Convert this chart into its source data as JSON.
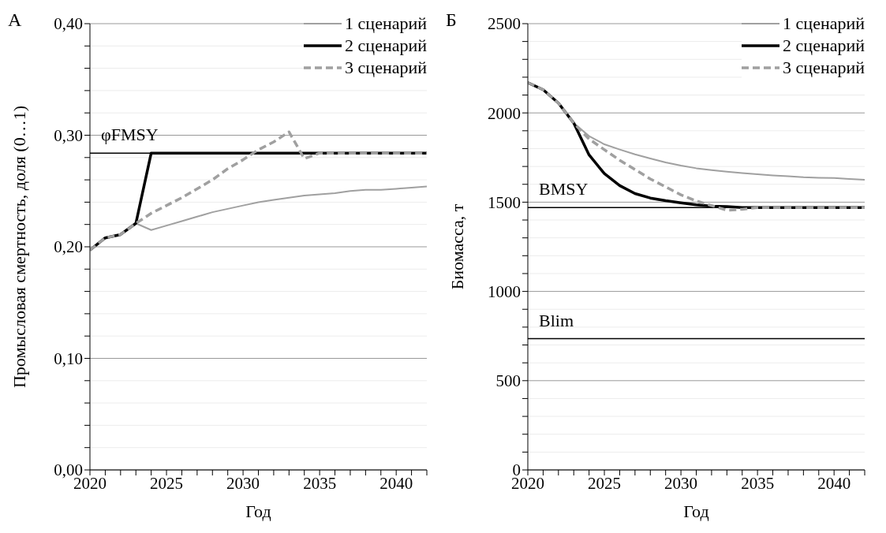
{
  "chart_data": [
    {
      "type": "line",
      "title": "А",
      "xlabel": "Год",
      "ylabel": "Промысловая смертность, доля (0…1)",
      "x": [
        2020,
        2021,
        2022,
        2023,
        2024,
        2025,
        2026,
        2027,
        2028,
        2029,
        2030,
        2031,
        2032,
        2033,
        2034,
        2035,
        2036,
        2037,
        2038,
        2039,
        2040,
        2041,
        2042
      ],
      "series": [
        {
          "name": "1 сценарий",
          "color": "#a0a0a0",
          "line_style": "solid",
          "values": [
            0.197,
            0.208,
            0.211,
            0.221,
            0.215,
            0.219,
            0.223,
            0.227,
            0.231,
            0.234,
            0.237,
            0.24,
            0.242,
            0.244,
            0.246,
            0.247,
            0.248,
            0.25,
            0.251,
            0.251,
            0.252,
            0.253,
            0.254
          ]
        },
        {
          "name": "2 сценарий",
          "color": "#000000",
          "line_style": "solid",
          "values": [
            0.197,
            0.208,
            0.211,
            0.221,
            0.284,
            0.284,
            0.284,
            0.284,
            0.284,
            0.284,
            0.284,
            0.284,
            0.284,
            0.284,
            0.284,
            0.284,
            0.284,
            0.284,
            0.284,
            0.284,
            0.284,
            0.284,
            0.284
          ]
        },
        {
          "name": "3 сценарий",
          "color": "#a0a0a0",
          "line_style": "dashed",
          "values": [
            0.197,
            0.208,
            0.211,
            0.221,
            0.23,
            0.237,
            0.244,
            0.252,
            0.26,
            0.27,
            0.278,
            0.287,
            0.294,
            0.303,
            0.279,
            0.284,
            0.284,
            0.284,
            0.284,
            0.284,
            0.284,
            0.284,
            0.284
          ]
        }
      ],
      "xlim": [
        2020,
        2042
      ],
      "xticks": [
        2020,
        {
          "value": 2021,
          "label": null
        },
        {
          "value": 2022,
          "label": null
        },
        {
          "value": 2023,
          "label": null
        },
        {
          "value": 2024,
          "label": null
        },
        2025,
        {
          "value": 2026,
          "label": null
        },
        {
          "value": 2027,
          "label": null
        },
        {
          "value": 2028,
          "label": null
        },
        {
          "value": 2029,
          "label": null
        },
        2030,
        {
          "value": 2031,
          "label": null
        },
        {
          "value": 2032,
          "label": null
        },
        {
          "value": 2033,
          "label": null
        },
        {
          "value": 2034,
          "label": null
        },
        2035,
        {
          "value": 2036,
          "label": null
        },
        {
          "value": 2037,
          "label": null
        },
        {
          "value": 2038,
          "label": null
        },
        {
          "value": 2039,
          "label": null
        },
        2040,
        {
          "value": 2041,
          "label": null
        },
        {
          "value": 2042,
          "label": null
        }
      ],
      "ylim": [
        0,
        0.4
      ],
      "yticks": [
        {
          "value": 0,
          "label": "0,00"
        },
        {
          "value": 0.02,
          "label": null
        },
        {
          "value": 0.04,
          "label": null
        },
        {
          "value": 0.06,
          "label": null
        },
        {
          "value": 0.08,
          "label": null
        },
        {
          "value": 0.1,
          "label": "0,10"
        },
        {
          "value": 0.12,
          "label": null
        },
        {
          "value": 0.14,
          "label": null
        },
        {
          "value": 0.16,
          "label": null
        },
        {
          "value": 0.18,
          "label": null
        },
        {
          "value": 0.2,
          "label": "0,20"
        },
        {
          "value": 0.22,
          "label": null
        },
        {
          "value": 0.24,
          "label": null
        },
        {
          "value": 0.26,
          "label": null
        },
        {
          "value": 0.28,
          "label": null
        },
        {
          "value": 0.3,
          "label": "0,30"
        },
        {
          "value": 0.32,
          "label": null
        },
        {
          "value": 0.34,
          "label": null
        },
        {
          "value": 0.36,
          "label": null
        },
        {
          "value": 0.38,
          "label": null
        },
        {
          "value": 0.4,
          "label": "0,40"
        }
      ],
      "grid": "y",
      "legend": "top right",
      "ref_lines": [
        {
          "axis": "y",
          "value": 0.284,
          "label": "φFMSY",
          "color": "#000000"
        }
      ]
    },
    {
      "type": "line",
      "title": "Б",
      "xlabel": "Год",
      "ylabel": "Биомасса, т",
      "x": [
        2020,
        2021,
        2022,
        2023,
        2024,
        2025,
        2026,
        2027,
        2028,
        2029,
        2030,
        2031,
        2032,
        2033,
        2034,
        2035,
        2036,
        2037,
        2038,
        2039,
        2040,
        2041,
        2042
      ],
      "series": [
        {
          "name": "1 сценарий",
          "color": "#a0a0a0",
          "line_style": "solid",
          "values": [
            2170,
            2130,
            2055,
            1943,
            1870,
            1824,
            1795,
            1768,
            1745,
            1723,
            1705,
            1690,
            1680,
            1671,
            1663,
            1656,
            1650,
            1645,
            1640,
            1637,
            1635,
            1630,
            1625
          ]
        },
        {
          "name": "2 сценарий",
          "color": "#000000",
          "line_style": "solid",
          "values": [
            2170,
            2130,
            2055,
            1943,
            1765,
            1660,
            1593,
            1548,
            1523,
            1508,
            1496,
            1485,
            1478,
            1475,
            1470,
            1470,
            1470,
            1470,
            1470,
            1470,
            1470,
            1470,
            1470
          ]
        },
        {
          "name": "3 сценарий",
          "color": "#a0a0a0",
          "line_style": "dashed",
          "values": [
            2170,
            2130,
            2055,
            1943,
            1854,
            1794,
            1735,
            1683,
            1630,
            1586,
            1541,
            1507,
            1481,
            1455,
            1460,
            1470,
            1470,
            1470,
            1470,
            1470,
            1470,
            1470,
            1470
          ]
        }
      ],
      "xlim": [
        2020,
        2042
      ],
      "xticks": [
        2020,
        {
          "value": 2021,
          "label": null
        },
        {
          "value": 2022,
          "label": null
        },
        {
          "value": 2023,
          "label": null
        },
        {
          "value": 2024,
          "label": null
        },
        2025,
        {
          "value": 2026,
          "label": null
        },
        {
          "value": 2027,
          "label": null
        },
        {
          "value": 2028,
          "label": null
        },
        {
          "value": 2029,
          "label": null
        },
        2030,
        {
          "value": 2031,
          "label": null
        },
        {
          "value": 2032,
          "label": null
        },
        {
          "value": 2033,
          "label": null
        },
        {
          "value": 2034,
          "label": null
        },
        2035,
        {
          "value": 2036,
          "label": null
        },
        {
          "value": 2037,
          "label": null
        },
        {
          "value": 2038,
          "label": null
        },
        {
          "value": 2039,
          "label": null
        },
        2040,
        {
          "value": 2041,
          "label": null
        },
        {
          "value": 2042,
          "label": null
        }
      ],
      "ylim": [
        0,
        2500
      ],
      "yticks": [
        0,
        {
          "value": 100,
          "label": null
        },
        {
          "value": 200,
          "label": null
        },
        {
          "value": 300,
          "label": null
        },
        {
          "value": 400,
          "label": null
        },
        500,
        {
          "value": 600,
          "label": null
        },
        {
          "value": 700,
          "label": null
        },
        {
          "value": 800,
          "label": null
        },
        {
          "value": 900,
          "label": null
        },
        1000,
        {
          "value": 1100,
          "label": null
        },
        {
          "value": 1200,
          "label": null
        },
        {
          "value": 1300,
          "label": null
        },
        {
          "value": 1400,
          "label": null
        },
        1500,
        {
          "value": 1600,
          "label": null
        },
        {
          "value": 1700,
          "label": null
        },
        {
          "value": 1800,
          "label": null
        },
        {
          "value": 1900,
          "label": null
        },
        2000,
        {
          "value": 2100,
          "label": null
        },
        {
          "value": 2200,
          "label": null
        },
        {
          "value": 2300,
          "label": null
        },
        {
          "value": 2400,
          "label": null
        },
        2500
      ],
      "grid": "y",
      "legend": "top right",
      "ref_lines": [
        {
          "axis": "y",
          "value": 1470,
          "label": "BMSY",
          "color": "#000000"
        },
        {
          "axis": "y",
          "value": 735,
          "label": "Blim",
          "color": "#000000"
        }
      ]
    }
  ]
}
